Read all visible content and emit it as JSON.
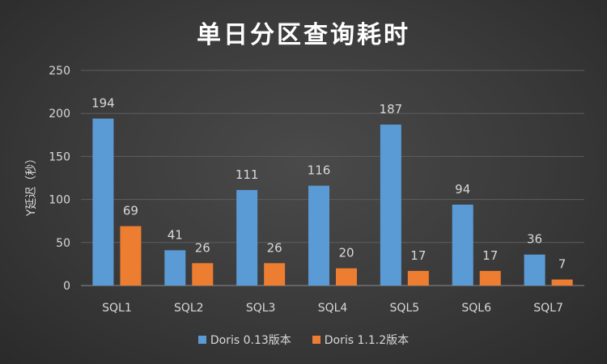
{
  "chart_data": {
    "type": "bar",
    "title": "单日分区查询耗时",
    "xlabel": "",
    "ylabel": "Y延迟（秒）",
    "categories": [
      "SQL1",
      "SQL2",
      "SQL3",
      "SQL4",
      "SQL5",
      "SQL6",
      "SQL7"
    ],
    "series": [
      {
        "name": "Doris 0.13版本",
        "color": "#5b9bd5",
        "values": [
          194,
          41,
          111,
          116,
          187,
          94,
          36
        ]
      },
      {
        "name": "Doris 1.1.2版本",
        "color": "#ed7d31",
        "values": [
          69,
          26,
          26,
          20,
          17,
          17,
          7
        ]
      }
    ],
    "ylim": [
      0,
      250
    ],
    "yticks": [
      0,
      50,
      100,
      150,
      200,
      250
    ],
    "grid": true,
    "legend_position": "bottom",
    "data_labels": true
  }
}
